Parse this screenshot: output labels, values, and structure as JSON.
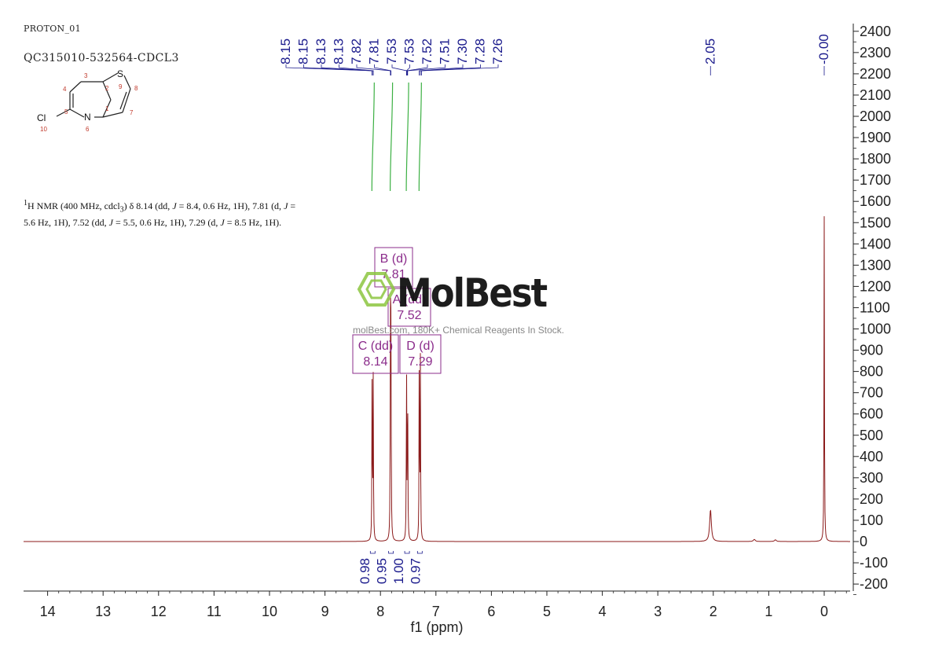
{
  "header": {
    "sample_id": "PROTON_01",
    "sample_code": "QC315010-532564-CDCL3"
  },
  "structure": {
    "atoms": [
      {
        "label": "S",
        "num": "9"
      },
      {
        "label": "N",
        "num": "6"
      },
      {
        "label": "Cl",
        "num": "10"
      }
    ],
    "ring_numbers": [
      "1",
      "2",
      "3",
      "4",
      "5",
      "7",
      "8"
    ]
  },
  "nmr_description": {
    "p1": "H NMR (400 MHz, cdcl",
    "p1_sup": "1",
    "p1_sub": "3",
    "p2": ") δ 8.14 (dd, ",
    "j": "J",
    "p3": " = 8.4, 0.6 Hz, 1H), 7.81 (d, ",
    "p4": " = 5.6 Hz, 1H), 7.52 (dd, ",
    "p5": " = 5.5, 0.6 Hz, 1H), 7.29 (d, ",
    "p6": " = 8.5 Hz, 1H)."
  },
  "watermark": {
    "brand": "MolBest",
    "tagline": "molBest.com, 180K+ Chemical Reagents In Stock."
  },
  "colors": {
    "spectrum": "#8b1a1a",
    "peak_label": "#1a1a8c",
    "integral": "#3cb043",
    "multiplet": "#8b2c8b",
    "axis": "#222222",
    "logo": "#8cc63f"
  },
  "chart_data": {
    "type": "line",
    "title": "",
    "xlabel": "f1 (ppm)",
    "ylabel": "",
    "xlim": [
      14.4,
      -0.45
    ],
    "x_reversed": true,
    "ylim": [
      -230,
      2430
    ],
    "x_ticks": [
      14,
      13,
      12,
      11,
      10,
      9,
      8,
      7,
      6,
      5,
      4,
      3,
      2,
      1,
      0
    ],
    "y_ticks": [
      -200,
      -100,
      0,
      100,
      200,
      300,
      400,
      500,
      600,
      700,
      800,
      900,
      1000,
      1100,
      1200,
      1300,
      1400,
      1500,
      1600,
      1700,
      1800,
      1900,
      2000,
      2100,
      2200,
      2300,
      2400
    ],
    "peaks": [
      {
        "ppm": 8.15,
        "height": 820
      },
      {
        "ppm": 8.13,
        "height": 760
      },
      {
        "ppm": 7.82,
        "height": 1020
      },
      {
        "ppm": 7.81,
        "height": 980
      },
      {
        "ppm": 7.53,
        "height": 840
      },
      {
        "ppm": 7.51,
        "height": 810
      },
      {
        "ppm": 7.3,
        "height": 880
      },
      {
        "ppm": 7.28,
        "height": 850
      },
      {
        "ppm": 2.05,
        "height": 150
      },
      {
        "ppm": 1.26,
        "height": 10
      },
      {
        "ppm": 0.88,
        "height": 8
      },
      {
        "ppm": 0.0,
        "height": 1530
      }
    ],
    "peak_labels": [
      "8.15",
      "8.15",
      "8.13",
      "8.13",
      "7.82",
      "7.81",
      "7.53",
      "7.53",
      "7.52",
      "7.51",
      "7.30",
      "7.28",
      "7.26",
      "2.05",
      "-0.00"
    ],
    "integrals": [
      {
        "ppm": 8.14,
        "value": "0.98"
      },
      {
        "ppm": 7.81,
        "value": "0.95"
      },
      {
        "ppm": 7.52,
        "value": "1.00"
      },
      {
        "ppm": 7.29,
        "value": "0.97"
      }
    ],
    "multiplets": [
      {
        "name": "B (d)",
        "shift": "7.81"
      },
      {
        "name": "A (dd)",
        "shift": "7.52"
      },
      {
        "name": "C (dd)",
        "shift": "8.14"
      },
      {
        "name": "D (d)",
        "shift": "7.29"
      }
    ]
  }
}
